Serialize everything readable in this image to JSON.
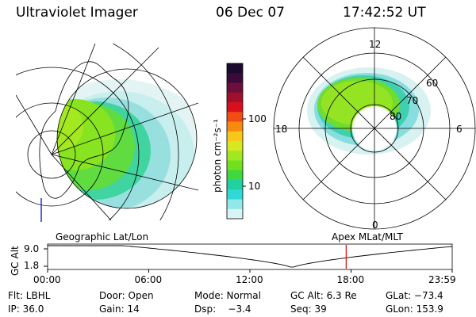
{
  "header": {
    "title": "Ultraviolet Imager",
    "date": "06 Dec 07",
    "time": "17:42:52 UT"
  },
  "colorbar": {
    "label": "photon cm⁻²s⁻¹",
    "ticks": [
      "100",
      "10"
    ],
    "colors": [
      "#1a0a2e",
      "#3b0a3b",
      "#6b0f3a",
      "#a0102c",
      "#d8101c",
      "#f04c14",
      "#f88a10",
      "#f8c818",
      "#d8e820",
      "#a0e820",
      "#70e020",
      "#40d840",
      "#20d0a0",
      "#30d8d8",
      "#90e8e8",
      "#d8f4f4"
    ]
  },
  "polar_plot": {
    "mlt_labels": [
      "12",
      "18",
      "6",
      "0"
    ],
    "lat_labels": [
      "60",
      "70",
      "80"
    ]
  },
  "panel_labels": {
    "left": "Geographic Lat/Lon",
    "right": "Apex MLat/MLT"
  },
  "altitude_plot": {
    "ylabel": "GC Alt",
    "yticks": [
      "9.0",
      "1.8"
    ],
    "xticks": [
      "00:00",
      "06:00",
      "12:00",
      "18:00",
      "23:59"
    ],
    "marker_color": "#e00000",
    "marker_hour": 17.71
  },
  "info": {
    "row1": [
      "Flt: LBHL",
      "Door: Open",
      "Mode: Normal",
      "GC Alt: 6.3 Re",
      "GLat: −73.4"
    ],
    "row2": [
      "IP: 36.0",
      "Gain: 14",
      "Dsp:    −3.4",
      "Seq: 39",
      "GLon: 153.9"
    ]
  }
}
